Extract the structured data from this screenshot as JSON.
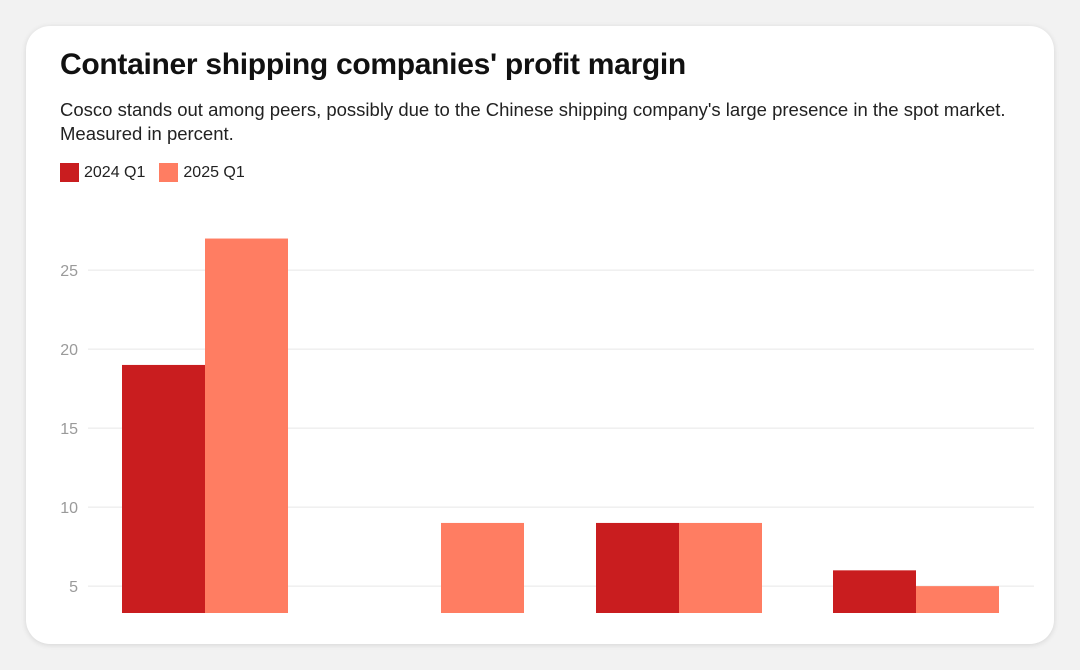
{
  "chart_data": {
    "type": "bar",
    "title": "Container shipping companies' profit margin",
    "subtitle": "Cosco stands out among peers, possibly due to the Chinese shipping company's large presence in the spot market. Measured in percent.",
    "categories": [
      "",
      "",
      "",
      ""
    ],
    "series": [
      {
        "name": "2024 Q1",
        "color": "#c91d1f",
        "values": [
          19,
          null,
          9,
          6
        ]
      },
      {
        "name": "2025 Q1",
        "color": "#ff7d62",
        "values": [
          27,
          9,
          9,
          5
        ]
      }
    ],
    "yticks": [
      5,
      10,
      15,
      20,
      25
    ],
    "ylim": [
      3.3,
      29
    ],
    "grid": true,
    "legend": "top-left"
  }
}
